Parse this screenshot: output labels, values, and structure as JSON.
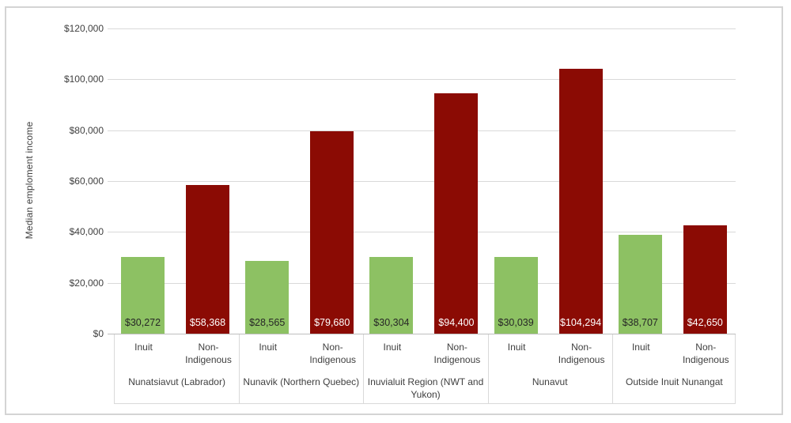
{
  "page": {
    "background": "#ffffff",
    "frame_border_color": "#d4d4d4"
  },
  "chart_data": {
    "type": "bar",
    "title": "",
    "xlabel": "",
    "ylabel": "Median emploment income",
    "ylim": [
      0,
      120000
    ],
    "ytick_step": 20000,
    "grid": true,
    "legend_position": "none",
    "yticks": [
      {
        "value": 120000,
        "label": "$120,000"
      },
      {
        "value": 100000,
        "label": "$100,000"
      },
      {
        "value": 80000,
        "label": "$80,000"
      },
      {
        "value": 60000,
        "label": "$60,000"
      },
      {
        "value": 40000,
        "label": "$40,000"
      },
      {
        "value": 20000,
        "label": "$20,000"
      },
      {
        "value": 0,
        "label": "$0"
      }
    ],
    "categories": [
      "Nunatsiavut (Labrador)",
      "Nunavik (Northern Quebec)",
      "Inuvialuit Region (NWT and Yukon)",
      "Nunavut",
      "Outside Inuit Nunangat"
    ],
    "subcategories": [
      "Inuit",
      "Non-Indigenous"
    ],
    "series": [
      {
        "name": "Inuit",
        "color": "#8dc163",
        "label_color": "#262626",
        "values": [
          30272,
          28565,
          30304,
          30039,
          38707
        ],
        "data_labels": [
          "$30,272",
          "$28,565",
          "$30,304",
          "$30,039",
          "$38,707"
        ]
      },
      {
        "name": "Non-Indigenous",
        "color": "#8b0b04",
        "label_color": "#ffffff",
        "values": [
          58368,
          79680,
          94400,
          104294,
          42650
        ],
        "data_labels": [
          "$58,368",
          "$79,680",
          "$94,400",
          "$104,294",
          "$42,650"
        ]
      }
    ],
    "colors": {
      "gridline": "#d9d9d9",
      "axis_line": "#bfbfbf",
      "text": "#404040"
    }
  }
}
